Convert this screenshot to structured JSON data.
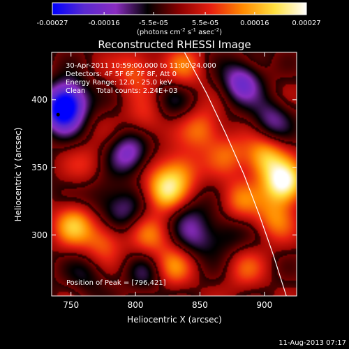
{
  "colorbar": {
    "ticks": [
      "-0.00027",
      "-0.00016",
      "-5.5e-05",
      "5.5e-05",
      "0.00016",
      "0.00027"
    ],
    "tick_values": [
      -0.00027,
      -0.00016,
      -5.5e-05,
      5.5e-05,
      0.00016,
      0.00027
    ],
    "range": [
      -0.00027,
      0.00027
    ],
    "units_text": "(photons cm",
    "units_sup1": "-2",
    "units_mid": " s",
    "units_sup2": "-1",
    "units_end": " asec",
    "units_sup3": "-2",
    "units_close": ")",
    "colors": [
      "#0000ff",
      "#5a2ad0",
      "#8a2cc0",
      "#000000",
      "#8b0000",
      "#e82010",
      "#ff8a00",
      "#ffe040",
      "#ffffff"
    ]
  },
  "chart_data": {
    "type": "heatmap",
    "title": "Reconstructed RHESSI Image",
    "xlabel": "Heliocentric X (arcsec)",
    "ylabel": "Heliocentric Y (arcsec)",
    "xlim": [
      735,
      925
    ],
    "ylim": [
      255,
      435
    ],
    "xticks": [
      750,
      800,
      850,
      900
    ],
    "yticks": [
      300,
      350,
      400
    ],
    "info_lines": [
      "30-Apr-2011 10:59:00.000 to 11:00:24.000",
      "Detectors: 4F 5F 6F 7F 8F, Att 0",
      "Energy Range: 12.0 - 25.0 keV",
      "Clean     Total counts: 2.24E+03"
    ],
    "peak_label": "Position of Peak = [796,421]",
    "peak": [
      796,
      421
    ],
    "marker": [
      740,
      389
    ],
    "limb_curve": [
      [
        838,
        435
      ],
      [
        855,
        405
      ],
      [
        870,
        375
      ],
      [
        884,
        345
      ],
      [
        896,
        315
      ],
      [
        907,
        285
      ],
      [
        917,
        255
      ]
    ],
    "sources": [
      {
        "x": 823,
        "y": 333,
        "v": 0.0002
      },
      {
        "x": 835,
        "y": 348,
        "v": 0.00013
      },
      {
        "x": 915,
        "y": 338,
        "v": 0.00027
      },
      {
        "x": 900,
        "y": 357,
        "v": 0.00018
      },
      {
        "x": 908,
        "y": 312,
        "v": 0.00012
      },
      {
        "x": 752,
        "y": 308,
        "v": 0.00016
      },
      {
        "x": 775,
        "y": 296,
        "v": 0.00012
      },
      {
        "x": 812,
        "y": 300,
        "v": 0.0001
      },
      {
        "x": 829,
        "y": 277,
        "v": 0.00012
      },
      {
        "x": 852,
        "y": 378,
        "v": 0.00012
      },
      {
        "x": 872,
        "y": 360,
        "v": 9e-05
      },
      {
        "x": 880,
        "y": 326,
        "v": 0.00011
      },
      {
        "x": 800,
        "y": 422,
        "v": 0.00011
      },
      {
        "x": 838,
        "y": 424,
        "v": 0.0001
      },
      {
        "x": 808,
        "y": 385,
        "v": 8e-05
      },
      {
        "x": 885,
        "y": 275,
        "v": 8e-05
      },
      {
        "x": 764,
        "y": 352,
        "v": 6e-05
      },
      {
        "x": 748,
        "y": 400,
        "v": -0.00022
      },
      {
        "x": 742,
        "y": 389,
        "v": -0.00018
      },
      {
        "x": 795,
        "y": 360,
        "v": -0.00016
      },
      {
        "x": 882,
        "y": 413,
        "v": -0.00017
      },
      {
        "x": 905,
        "y": 385,
        "v": -0.00012
      },
      {
        "x": 790,
        "y": 317,
        "v": -0.0001
      },
      {
        "x": 840,
        "y": 315,
        "v": -8e-05
      },
      {
        "x": 808,
        "y": 270,
        "v": -8e-05
      },
      {
        "x": 848,
        "y": 297,
        "v": -9e-05
      },
      {
        "x": 773,
        "y": 328,
        "v": -7e-05
      },
      {
        "x": 763,
        "y": 270,
        "v": -7e-05
      },
      {
        "x": 870,
        "y": 300,
        "v": -8e-05
      },
      {
        "x": 828,
        "y": 398,
        "v": -6e-05
      }
    ]
  },
  "footer": {
    "date": "11-Aug-2013 07:17"
  }
}
